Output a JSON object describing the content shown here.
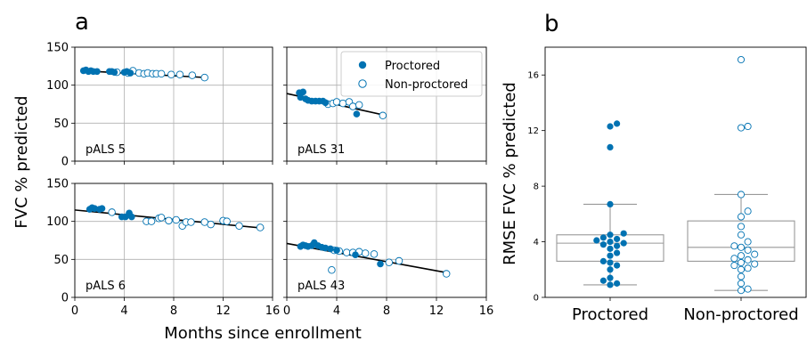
{
  "panel_labels": {
    "a": "a",
    "b": "b"
  },
  "colors": {
    "proctored": "#0072B2",
    "non_proctored_edge": "#0072B2",
    "fit_line": "#000000",
    "grid": "#b0b0b0",
    "box": "#999999"
  },
  "chart_data": [
    {
      "type": "scatter",
      "panel": "a",
      "ylabel": "FVC % predicted",
      "xlabel": "Months since enrollment",
      "xlim": [
        0,
        16
      ],
      "ylim": [
        0,
        150
      ],
      "xticks": [
        "0",
        "4",
        "8",
        "12",
        "16"
      ],
      "yticks": [
        "0",
        "50",
        "100",
        "150"
      ],
      "grid": true,
      "legend": {
        "placement": "top-right of pALS 31 subplot",
        "entries": [
          "Proctored",
          "Non-proctored"
        ]
      },
      "subplots": [
        {
          "label": "pALS 5",
          "fit": [
            [
              0.5,
              119
            ],
            [
              10.7,
              110
            ]
          ],
          "proctored": [
            [
              0.7,
              119
            ],
            [
              0.9,
              120
            ],
            [
              1.1,
              118
            ],
            [
              1.3,
              119
            ],
            [
              1.5,
              118
            ],
            [
              1.8,
              118
            ],
            [
              2.8,
              118
            ],
            [
              3.0,
              118
            ],
            [
              3.2,
              117
            ],
            [
              4.0,
              117
            ],
            [
              4.2,
              118
            ],
            [
              4.5,
              116
            ]
          ],
          "non_proctored": [
            [
              3.4,
              117
            ],
            [
              4.3,
              116
            ],
            [
              4.7,
              119
            ],
            [
              5.2,
              116
            ],
            [
              5.6,
              115
            ],
            [
              5.9,
              116
            ],
            [
              6.3,
              115
            ],
            [
              6.6,
              115
            ],
            [
              7.0,
              115
            ],
            [
              7.8,
              114
            ],
            [
              8.5,
              114
            ],
            [
              9.5,
              113
            ],
            [
              10.5,
              110
            ]
          ]
        },
        {
          "label": "pALS 31",
          "fit": [
            [
              0,
              89
            ],
            [
              7.7,
              61
            ]
          ],
          "proctored": [
            [
              1.0,
              90
            ],
            [
              1.3,
              91
            ],
            [
              1.1,
              84
            ],
            [
              1.5,
              82
            ],
            [
              1.7,
              80
            ],
            [
              2.0,
              79
            ],
            [
              2.3,
              79
            ],
            [
              2.6,
              79
            ],
            [
              2.9,
              79
            ],
            [
              3.1,
              77
            ],
            [
              5.6,
              62
            ]
          ],
          "non_proctored": [
            [
              3.3,
              75
            ],
            [
              3.7,
              76
            ],
            [
              4.0,
              78
            ],
            [
              4.5,
              76
            ],
            [
              5.0,
              78
            ],
            [
              5.3,
              72
            ],
            [
              5.8,
              74
            ],
            [
              7.7,
              60
            ]
          ]
        },
        {
          "label": "pALS 6",
          "fit": [
            [
              0,
              115
            ],
            [
              15.3,
              91
            ]
          ],
          "proctored": [
            [
              1.2,
              116
            ],
            [
              1.4,
              118
            ],
            [
              1.6,
              117
            ],
            [
              2.0,
              116
            ],
            [
              2.2,
              117
            ],
            [
              3.8,
              106
            ],
            [
              4.1,
              106
            ],
            [
              4.4,
              111
            ],
            [
              4.6,
              106
            ]
          ],
          "non_proctored": [
            [
              3.0,
              112
            ],
            [
              5.8,
              100
            ],
            [
              6.2,
              100
            ],
            [
              6.8,
              104
            ],
            [
              7.0,
              105
            ],
            [
              7.6,
              101
            ],
            [
              8.2,
              102
            ],
            [
              8.7,
              94
            ],
            [
              9.0,
              99
            ],
            [
              9.4,
              99
            ],
            [
              10.5,
              99
            ],
            [
              11.0,
              96
            ],
            [
              12.0,
              101
            ],
            [
              12.3,
              100
            ],
            [
              13.3,
              94
            ],
            [
              15.0,
              92
            ]
          ]
        },
        {
          "label": "pALS 43",
          "fit": [
            [
              0,
              71
            ],
            [
              13,
              32
            ]
          ],
          "proctored": [
            [
              1.1,
              67
            ],
            [
              1.3,
              69
            ],
            [
              1.5,
              68
            ],
            [
              1.7,
              67
            ],
            [
              2.0,
              68
            ],
            [
              2.2,
              72
            ],
            [
              2.5,
              68
            ],
            [
              2.8,
              66
            ],
            [
              3.1,
              65
            ],
            [
              3.5,
              64
            ],
            [
              4.0,
              62
            ],
            [
              5.5,
              56
            ],
            [
              7.5,
              44
            ]
          ],
          "non_proctored": [
            [
              3.6,
              36
            ],
            [
              3.8,
              62
            ],
            [
              4.2,
              61
            ],
            [
              4.8,
              59
            ],
            [
              5.3,
              59
            ],
            [
              5.8,
              60
            ],
            [
              6.3,
              58
            ],
            [
              7.0,
              57
            ],
            [
              8.2,
              46
            ],
            [
              9.0,
              48
            ],
            [
              12.8,
              31
            ]
          ]
        }
      ]
    },
    {
      "type": "box",
      "panel": "b",
      "ylabel": "RMSE FVC % predicted",
      "ylim": [
        0,
        18
      ],
      "yticks": [
        "0",
        "4",
        "8",
        "12",
        "16"
      ],
      "grid": false,
      "categories": [
        "Proctored",
        "Non-proctored"
      ],
      "boxes": [
        {
          "name": "Proctored",
          "whisker_low": 0.9,
          "q1": 2.6,
          "median": 3.9,
          "q3": 4.5,
          "whisker_high": 6.7,
          "points": [
            0.9,
            1.0,
            1.2,
            1.4,
            2.0,
            2.3,
            2.5,
            2.6,
            3.0,
            3.2,
            3.5,
            3.7,
            3.8,
            3.9,
            4.0,
            4.1,
            4.2,
            4.3,
            4.5,
            4.6,
            6.7,
            10.8,
            12.3,
            12.5
          ]
        },
        {
          "name": "Non-proctored",
          "whisker_low": 0.5,
          "q1": 2.6,
          "median": 3.6,
          "q3": 5.5,
          "whisker_high": 7.4,
          "points": [
            0.5,
            0.6,
            1.0,
            1.5,
            2.0,
            2.1,
            2.3,
            2.4,
            2.5,
            2.7,
            2.8,
            3.0,
            3.1,
            3.4,
            3.6,
            3.7,
            4.0,
            4.5,
            5.1,
            5.8,
            6.2,
            7.4,
            12.2,
            12.3,
            17.1
          ]
        }
      ]
    }
  ]
}
